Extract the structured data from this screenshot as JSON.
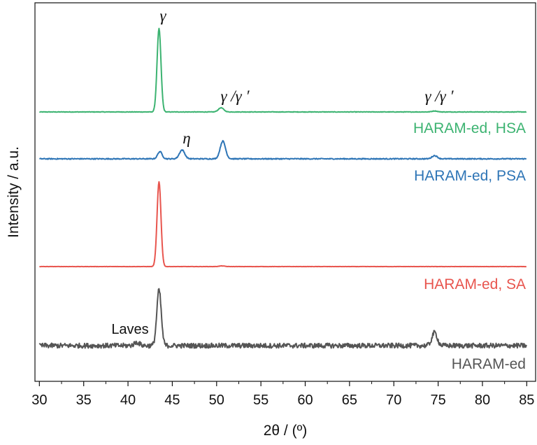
{
  "chart_data": {
    "type": "line",
    "title": "",
    "xlabel": "2θ / (º)",
    "ylabel": "Intensity / a.u.",
    "xlim": [
      29.5,
      86
    ],
    "xticks": [
      30,
      35,
      40,
      45,
      50,
      55,
      60,
      65,
      70,
      75,
      80,
      85
    ],
    "xtick_labels": [
      "30",
      "35",
      "40",
      "45",
      "50",
      "55",
      "60",
      "65",
      "70",
      "75",
      "80",
      "85"
    ],
    "grid": false,
    "legend": "none",
    "series": [
      {
        "name": "HARAM-ed, HSA",
        "color": "#3cb371",
        "baseline": 0.0,
        "peaks": [
          {
            "x": 43.5,
            "height": 100,
            "width": 0.22
          },
          {
            "x": 50.5,
            "height": 5,
            "width": 0.3
          },
          {
            "x": 74.6,
            "height": 1.2,
            "width": 0.3
          }
        ],
        "noise": 0.3
      },
      {
        "name": "HARAM-ed, PSA",
        "color": "#2e75b6",
        "baseline": 0.0,
        "peaks": [
          {
            "x": 43.6,
            "height": 9,
            "width": 0.25
          },
          {
            "x": 46.1,
            "height": 11,
            "width": 0.3
          },
          {
            "x": 50.7,
            "height": 22,
            "width": 0.3
          },
          {
            "x": 74.6,
            "height": 4,
            "width": 0.3
          }
        ],
        "noise": 0.6
      },
      {
        "name": "HARAM-ed, SA",
        "color": "#e8554e",
        "baseline": 0.0,
        "peaks": [
          {
            "x": 43.5,
            "height": 100,
            "width": 0.22
          },
          {
            "x": 50.6,
            "height": 0.8,
            "width": 0.3
          }
        ],
        "noise": 0.15
      },
      {
        "name": "HARAM-ed",
        "color": "#555555",
        "baseline": 0.0,
        "peaks": [
          {
            "x": 41.0,
            "height": 4,
            "width": 0.3
          },
          {
            "x": 43.5,
            "height": 68,
            "width": 0.25
          },
          {
            "x": 74.6,
            "height": 16,
            "width": 0.3
          }
        ],
        "noise": 3.0
      }
    ],
    "annotations": [
      {
        "text": "γ",
        "x": 43.5,
        "series": 0
      },
      {
        "text": "γ /γ ′",
        "x": 50.5,
        "series": 0
      },
      {
        "text": "γ /γ ′",
        "x": 74.6,
        "series": 0
      },
      {
        "text": "η",
        "x": 46.1,
        "series": 1
      },
      {
        "text": "Laves",
        "x": 41.0,
        "series": 3
      }
    ]
  }
}
